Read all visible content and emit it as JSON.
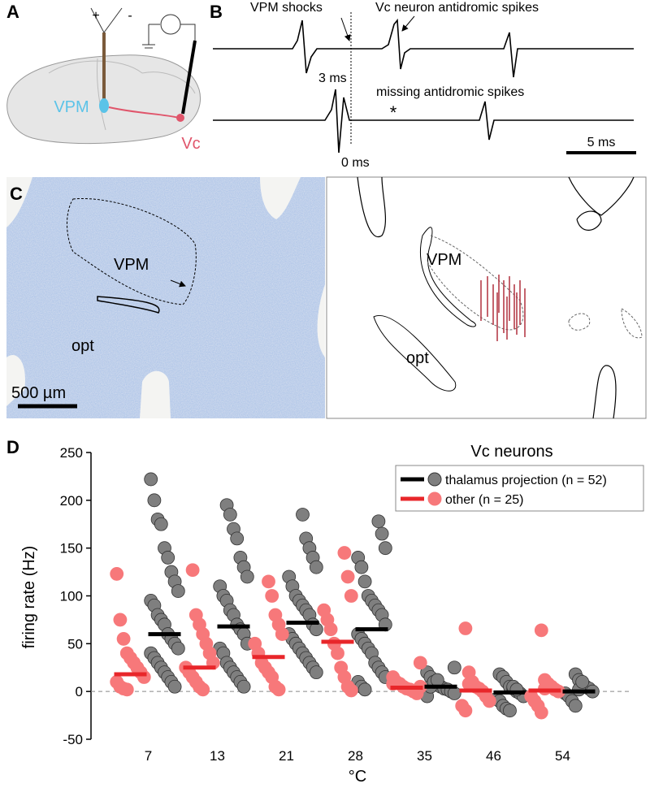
{
  "panel_a": {
    "label": "A",
    "plus": "+",
    "minus": "-",
    "region": "VPM",
    "target": "Vc"
  },
  "panel_b": {
    "label": "B",
    "stim_label": "VPM shocks",
    "spike_label": "Vc neuron antidromic spikes",
    "delay": "3 ms",
    "missing_label": "missing antidromic spikes",
    "asterisk": "*",
    "zero": "0 ms",
    "scale": "5 ms"
  },
  "panel_c": {
    "label": "C",
    "region_left": "VPM",
    "tract_left": "opt",
    "scale": "500 µm",
    "region_right": "VPM",
    "tract_right": "opt"
  },
  "chart_data": {
    "type": "strip",
    "panel_label": "D",
    "title": "Vc neurons",
    "ylabel": "firing rate (Hz)",
    "xlabel": "°C",
    "categories": [
      "7",
      "13",
      "21",
      "28",
      "35",
      "46",
      "54"
    ],
    "ylim": [
      -50,
      250
    ],
    "yticks": [
      -50,
      0,
      50,
      100,
      150,
      200,
      250
    ],
    "zero_line": true,
    "legend": "upper right",
    "series": [
      {
        "name": "thalamus projection (n = 52)",
        "color": "#000000",
        "marker_color": "#7f7f7f",
        "means": [
          60,
          68,
          72,
          65,
          5,
          -1,
          0
        ],
        "points": [
          [
            222,
            200,
            180,
            175,
            150,
            140,
            125,
            115,
            105,
            95,
            90,
            80,
            75,
            70,
            60,
            55,
            50,
            45,
            40,
            35,
            30,
            25,
            20,
            15,
            10,
            5
          ],
          [
            195,
            185,
            170,
            160,
            140,
            130,
            120,
            110,
            100,
            95,
            85,
            80,
            70,
            65,
            60,
            50,
            45,
            40,
            30,
            25,
            20,
            15,
            10,
            5
          ],
          [
            185,
            160,
            150,
            140,
            130,
            120,
            110,
            100,
            95,
            90,
            85,
            80,
            70,
            65,
            60,
            55,
            50,
            45,
            40,
            35,
            30,
            25,
            20
          ],
          [
            178,
            165,
            150,
            140,
            130,
            115,
            100,
            95,
            90,
            85,
            80,
            70,
            60,
            55,
            50,
            45,
            40,
            30,
            25,
            20,
            15,
            10,
            5,
            2
          ],
          [
            25,
            20,
            15,
            10,
            8,
            5,
            3,
            2,
            0,
            -2,
            -5,
            5,
            10,
            12
          ],
          [
            18,
            15,
            10,
            5,
            3,
            0,
            -2,
            -5,
            -8,
            -10,
            -15,
            -18,
            -20,
            5,
            2
          ],
          [
            18,
            12,
            8,
            5,
            3,
            0,
            -2,
            -5,
            -10,
            -15,
            2,
            10
          ]
        ]
      },
      {
        "name": "other (n = 25)",
        "color": "#e8262a",
        "marker_color": "#f7787a",
        "means": [
          18,
          25,
          36,
          52,
          4,
          1,
          1
        ],
        "points": [
          [
            123,
            75,
            55,
            40,
            35,
            30,
            25,
            20,
            15,
            10,
            5,
            3,
            2
          ],
          [
            127,
            80,
            70,
            60,
            50,
            40,
            30,
            25,
            20,
            15,
            10,
            5,
            2
          ],
          [
            115,
            100,
            80,
            70,
            60,
            50,
            40,
            30,
            25,
            20,
            15,
            5,
            2
          ],
          [
            145,
            120,
            100,
            85,
            75,
            65,
            50,
            40,
            25,
            15,
            5,
            1
          ],
          [
            30,
            15,
            10,
            8,
            5,
            3,
            2,
            0,
            -2,
            5,
            8
          ],
          [
            66,
            20,
            10,
            5,
            3,
            0,
            -5,
            -10,
            -15,
            -20,
            8
          ],
          [
            64,
            12,
            8,
            5,
            2,
            0,
            -5,
            -10,
            -15,
            -22,
            3
          ]
        ]
      }
    ]
  }
}
